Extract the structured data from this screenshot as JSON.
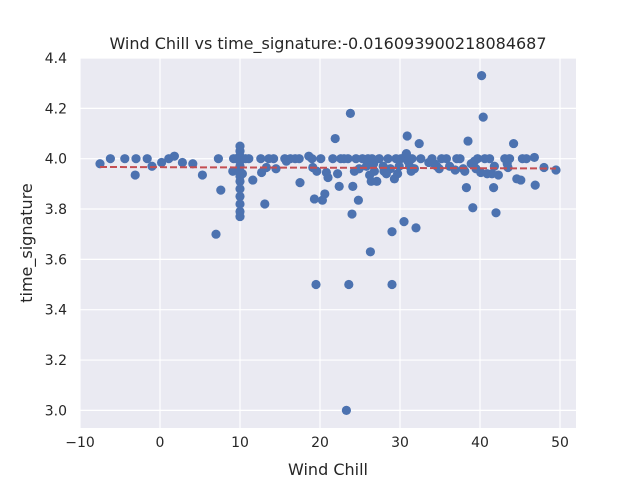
{
  "chart_data": {
    "type": "scatter",
    "title": "Wind Chill vs time_signature:-0.016093900218084687",
    "xlabel": "Wind Chill",
    "ylabel": "time_signature",
    "xlim": [
      -10,
      52
    ],
    "ylim": [
      2.93,
      4.4
    ],
    "x_ticks": [
      -10,
      0,
      10,
      20,
      30,
      40,
      50
    ],
    "x_tick_labels": [
      "−10",
      "0",
      "10",
      "20",
      "30",
      "40",
      "50"
    ],
    "y_ticks": [
      3.0,
      3.2,
      3.4,
      3.6,
      3.8,
      4.0,
      4.2,
      4.4
    ],
    "y_tick_labels": [
      "3.0",
      "3.2",
      "3.4",
      "3.6",
      "3.8",
      "4.0",
      "4.2",
      "4.4"
    ],
    "grid": true,
    "point_color": "#4c72b0",
    "trend_color": "#c44e52",
    "trend_line": {
      "x": [
        -7.5,
        49.5
      ],
      "y": [
        3.967,
        3.961
      ]
    },
    "points": [
      [
        -7.5,
        3.98
      ],
      [
        -6.2,
        4.0
      ],
      [
        -4.4,
        4.0
      ],
      [
        -3.1,
        3.935
      ],
      [
        -3,
        4.0
      ],
      [
        -1.6,
        4.0
      ],
      [
        -1,
        3.97
      ],
      [
        0.2,
        3.985
      ],
      [
        1.1,
        4.0
      ],
      [
        1.8,
        4.01
      ],
      [
        2.8,
        3.985
      ],
      [
        4.1,
        3.98
      ],
      [
        5.3,
        3.935
      ],
      [
        7,
        3.7
      ],
      [
        7.3,
        4.0
      ],
      [
        7.6,
        3.875
      ],
      [
        9.1,
        3.95
      ],
      [
        9.2,
        4.0
      ],
      [
        9.5,
        4.0
      ],
      [
        10,
        4.05
      ],
      [
        10,
        4.03
      ],
      [
        10,
        4.01
      ],
      [
        10,
        4.0
      ],
      [
        10,
        3.99
      ],
      [
        10,
        3.97
      ],
      [
        10,
        3.95
      ],
      [
        10,
        3.93
      ],
      [
        10,
        3.91
      ],
      [
        10,
        3.88
      ],
      [
        10,
        3.85
      ],
      [
        10,
        3.82
      ],
      [
        10,
        3.79
      ],
      [
        10,
        3.77
      ],
      [
        10.3,
        3.94
      ],
      [
        10.7,
        4.0
      ],
      [
        11.1,
        4.0
      ],
      [
        11.6,
        3.915
      ],
      [
        12.6,
        4.0
      ],
      [
        12.7,
        3.945
      ],
      [
        13.1,
        3.82
      ],
      [
        13.3,
        3.965
      ],
      [
        13.6,
        4.0
      ],
      [
        14.2,
        4.0
      ],
      [
        14.5,
        3.96
      ],
      [
        15.6,
        4.0
      ],
      [
        15.8,
        3.99
      ],
      [
        16.3,
        4.0
      ],
      [
        16.9,
        4.0
      ],
      [
        17.4,
        4.0
      ],
      [
        17.5,
        3.905
      ],
      [
        18.6,
        4.01
      ],
      [
        19,
        4.0
      ],
      [
        19.1,
        3.965
      ],
      [
        19.3,
        3.84
      ],
      [
        19.5,
        3.5
      ],
      [
        19.6,
        3.95
      ],
      [
        20.1,
        4.0
      ],
      [
        20.3,
        3.835
      ],
      [
        20.6,
        3.86
      ],
      [
        20.8,
        3.945
      ],
      [
        21,
        3.925
      ],
      [
        21.6,
        4.0
      ],
      [
        21.9,
        4.08
      ],
      [
        22.2,
        3.94
      ],
      [
        22.4,
        3.89
      ],
      [
        22.6,
        4.0
      ],
      [
        23,
        4.0
      ],
      [
        23.3,
        3.0
      ],
      [
        23.5,
        4.0
      ],
      [
        23.6,
        3.5
      ],
      [
        23.8,
        4.18
      ],
      [
        24,
        3.78
      ],
      [
        24.1,
        3.89
      ],
      [
        24.3,
        3.95
      ],
      [
        24.5,
        4.0
      ],
      [
        24.8,
        3.835
      ],
      [
        24.9,
        3.96
      ],
      [
        25.3,
        4.0
      ],
      [
        25.8,
        3.97
      ],
      [
        26,
        4.0
      ],
      [
        26.2,
        3.935
      ],
      [
        26.3,
        3.63
      ],
      [
        26.4,
        3.91
      ],
      [
        26.5,
        4.0
      ],
      [
        26.7,
        3.98
      ],
      [
        26.8,
        3.95
      ],
      [
        27.1,
        3.91
      ],
      [
        27.4,
        4.0
      ],
      [
        27.9,
        3.97
      ],
      [
        28,
        3.95
      ],
      [
        28.3,
        3.94
      ],
      [
        28.5,
        4.0
      ],
      [
        28.8,
        3.96
      ],
      [
        29,
        3.5
      ],
      [
        29,
        3.71
      ],
      [
        29.3,
        3.92
      ],
      [
        29.5,
        4.0
      ],
      [
        29.7,
        3.94
      ],
      [
        29.9,
        3.97
      ],
      [
        30.1,
        4.0
      ],
      [
        30.5,
        3.75
      ],
      [
        30.7,
        4.01
      ],
      [
        30.8,
        4.02
      ],
      [
        30.9,
        4.09
      ],
      [
        31,
        3.99
      ],
      [
        31.2,
        3.97
      ],
      [
        31.4,
        3.95
      ],
      [
        31.5,
        4.0
      ],
      [
        31.8,
        3.96
      ],
      [
        32,
        3.725
      ],
      [
        32.4,
        4.06
      ],
      [
        32.6,
        4.0
      ],
      [
        33.6,
        3.985
      ],
      [
        34,
        4.0
      ],
      [
        34.3,
        3.98
      ],
      [
        34.6,
        3.97
      ],
      [
        34.9,
        3.96
      ],
      [
        35.2,
        4.0
      ],
      [
        35.8,
        4.0
      ],
      [
        36.2,
        3.97
      ],
      [
        36.9,
        3.955
      ],
      [
        37.1,
        4.0
      ],
      [
        37.5,
        4.0
      ],
      [
        37.9,
        3.96
      ],
      [
        38.1,
        3.95
      ],
      [
        38.3,
        3.885
      ],
      [
        38.5,
        4.07
      ],
      [
        38.9,
        3.98
      ],
      [
        39.1,
        3.805
      ],
      [
        39.3,
        3.99
      ],
      [
        39.5,
        3.96
      ],
      [
        39.7,
        4.0
      ],
      [
        40.1,
        3.945
      ],
      [
        40.2,
        4.33
      ],
      [
        40.4,
        4.165
      ],
      [
        40.6,
        4.0
      ],
      [
        40.9,
        3.94
      ],
      [
        41.2,
        4.0
      ],
      [
        41.5,
        3.94
      ],
      [
        41.7,
        3.885
      ],
      [
        41.8,
        3.97
      ],
      [
        42,
        3.785
      ],
      [
        42.3,
        3.935
      ],
      [
        43.1,
        4.0
      ],
      [
        43.4,
        3.98
      ],
      [
        43.5,
        3.965
      ],
      [
        43.7,
        4.0
      ],
      [
        44.2,
        4.06
      ],
      [
        44.6,
        3.92
      ],
      [
        45.1,
        3.915
      ],
      [
        45.3,
        4.0
      ],
      [
        45.8,
        4.0
      ],
      [
        46.8,
        4.005
      ],
      [
        46.9,
        3.895
      ],
      [
        48,
        3.965
      ],
      [
        49.5,
        3.955
      ]
    ]
  }
}
